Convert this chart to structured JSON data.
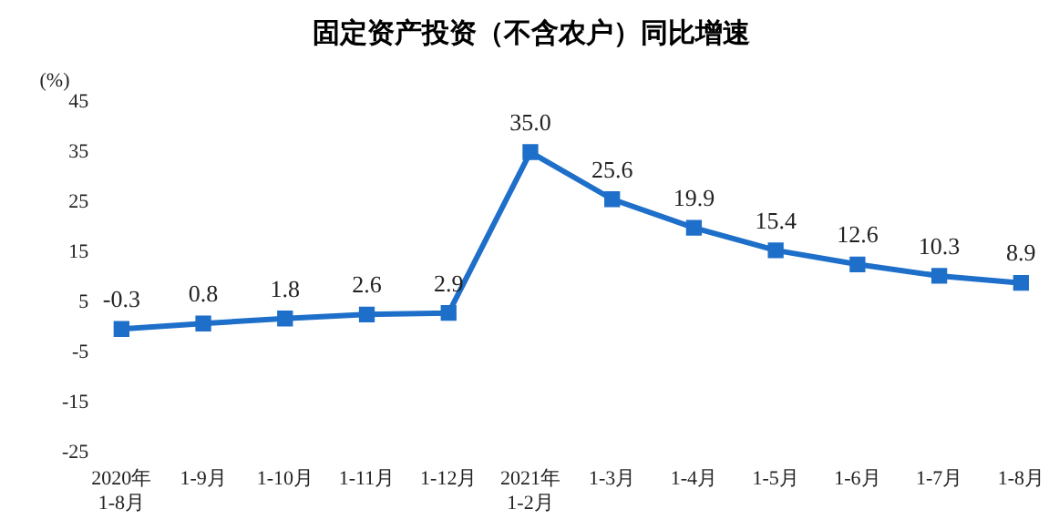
{
  "chart_data": {
    "type": "line",
    "title": "固定资产投资（不含农户）同比增速",
    "ylabel": "(%)",
    "categories": [
      "2020年\n1-8月",
      "1-9月",
      "1-10月",
      "1-11月",
      "1-12月",
      "2021年\n1-2月",
      "1-3月",
      "1-4月",
      "1-5月",
      "1-6月",
      "1-7月",
      "1-8月"
    ],
    "series": [
      {
        "color": "#1e6fc9",
        "values": [
          -0.3,
          0.8,
          1.8,
          2.6,
          2.9,
          35.0,
          25.6,
          19.9,
          15.4,
          12.6,
          10.3,
          8.9
        ],
        "value_labels": [
          "-0.3",
          "0.8",
          "1.8",
          "2.6",
          "2.9",
          "35.0",
          "25.6",
          "19.9",
          "15.4",
          "12.6",
          "10.3",
          "8.9"
        ]
      }
    ],
    "ylim": [
      -25,
      45
    ],
    "yticks": [
      -25,
      -15,
      -5,
      5,
      15,
      25,
      35,
      45
    ],
    "grid": false,
    "legend": false,
    "marker": "square",
    "line_style": "solid"
  }
}
